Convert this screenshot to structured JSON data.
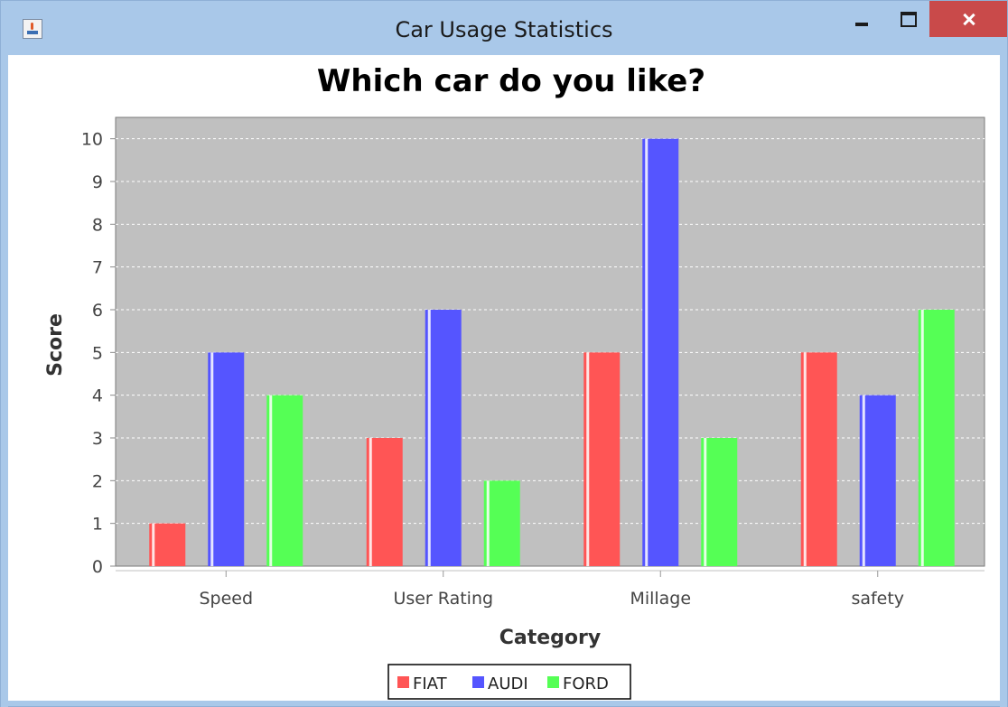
{
  "window": {
    "title": "Car Usage Statistics",
    "icon": "java-cup-icon"
  },
  "chart_data": {
    "type": "bar",
    "title": "Which car do you like?",
    "xlabel": "Category",
    "ylabel": "Score",
    "categories": [
      "Speed",
      "User Rating",
      "Millage",
      "safety"
    ],
    "series": [
      {
        "name": "FIAT",
        "values": [
          1,
          3,
          5,
          5
        ],
        "color": "#ff5555"
      },
      {
        "name": "AUDI",
        "values": [
          5,
          6,
          10,
          4
        ],
        "color": "#5555ff"
      },
      {
        "name": "FORD",
        "values": [
          4,
          2,
          3,
          6
        ],
        "color": "#55ff55"
      }
    ],
    "ylim": [
      0,
      10.5
    ],
    "yticks": [
      0,
      1,
      2,
      3,
      4,
      5,
      6,
      7,
      8,
      9,
      10
    ],
    "grid": true,
    "legend": "bottom",
    "plot_background": "#c0c0c0"
  }
}
